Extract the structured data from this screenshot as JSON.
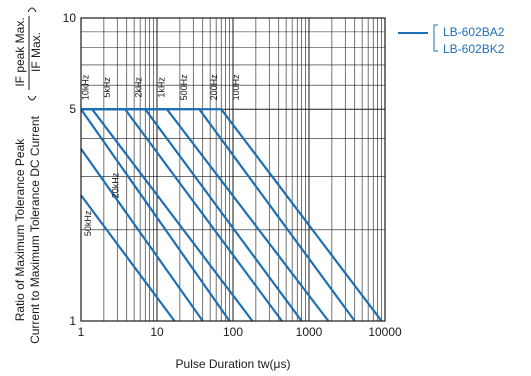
{
  "chart_data": {
    "type": "line",
    "xlabel": "Pulse Duration tw(μs)",
    "ylabel_line1": "Ratio of Maximum Tolerance Peak",
    "ylabel_line2": "Current to Maximum Tolerance DC Current",
    "ylabel_ratio_num": "IF peak Max.",
    "ylabel_ratio_den": "IF Max.",
    "x_scale": "log",
    "y_scale": "log",
    "xlim": [
      1,
      10000
    ],
    "ylim": [
      1,
      10
    ],
    "x_ticks": [
      {
        "value": 1,
        "label": "1"
      },
      {
        "value": 10,
        "label": "10"
      },
      {
        "value": 100,
        "label": "100"
      },
      {
        "value": 1000,
        "label": "1000"
      },
      {
        "value": 10000,
        "label": "10000"
      }
    ],
    "y_ticks": [
      {
        "value": 1,
        "label": "1"
      },
      {
        "value": 5,
        "label": "5"
      },
      {
        "value": 10,
        "label": "10"
      }
    ],
    "grid": true,
    "line_color": "#1f6fb5",
    "legend": {
      "placement": "outside-right",
      "entries": [
        "LB-602BA2",
        "LB-602BK2"
      ]
    },
    "series": [
      {
        "label": "100Hz",
        "points": [
          [
            1,
            5
          ],
          [
            70,
            5
          ],
          [
            9000,
            1
          ]
        ]
      },
      {
        "label": "200Hz",
        "points": [
          [
            1,
            5
          ],
          [
            36,
            5
          ],
          [
            4000,
            1
          ]
        ]
      },
      {
        "label": "500Hz",
        "points": [
          [
            1,
            5
          ],
          [
            13.5,
            5
          ],
          [
            1800,
            1
          ]
        ]
      },
      {
        "label": "1kHz",
        "points": [
          [
            1,
            5
          ],
          [
            7,
            5
          ],
          [
            800,
            1
          ]
        ]
      },
      {
        "label": "2kHz",
        "points": [
          [
            1,
            5
          ],
          [
            3.8,
            5
          ],
          [
            440,
            1
          ]
        ]
      },
      {
        "label": "5kHz",
        "points": [
          [
            1,
            5
          ],
          [
            1.4,
            5
          ],
          [
            180,
            1
          ]
        ]
      },
      {
        "label": "10kHz",
        "points": [
          [
            1,
            5
          ],
          [
            90,
            1
          ]
        ]
      },
      {
        "label": "20kHz",
        "points": [
          [
            1,
            3.7
          ],
          [
            40,
            1
          ]
        ]
      },
      {
        "label": "50kHz",
        "points": [
          [
            1,
            2.6
          ],
          [
            17,
            1
          ]
        ]
      }
    ]
  }
}
